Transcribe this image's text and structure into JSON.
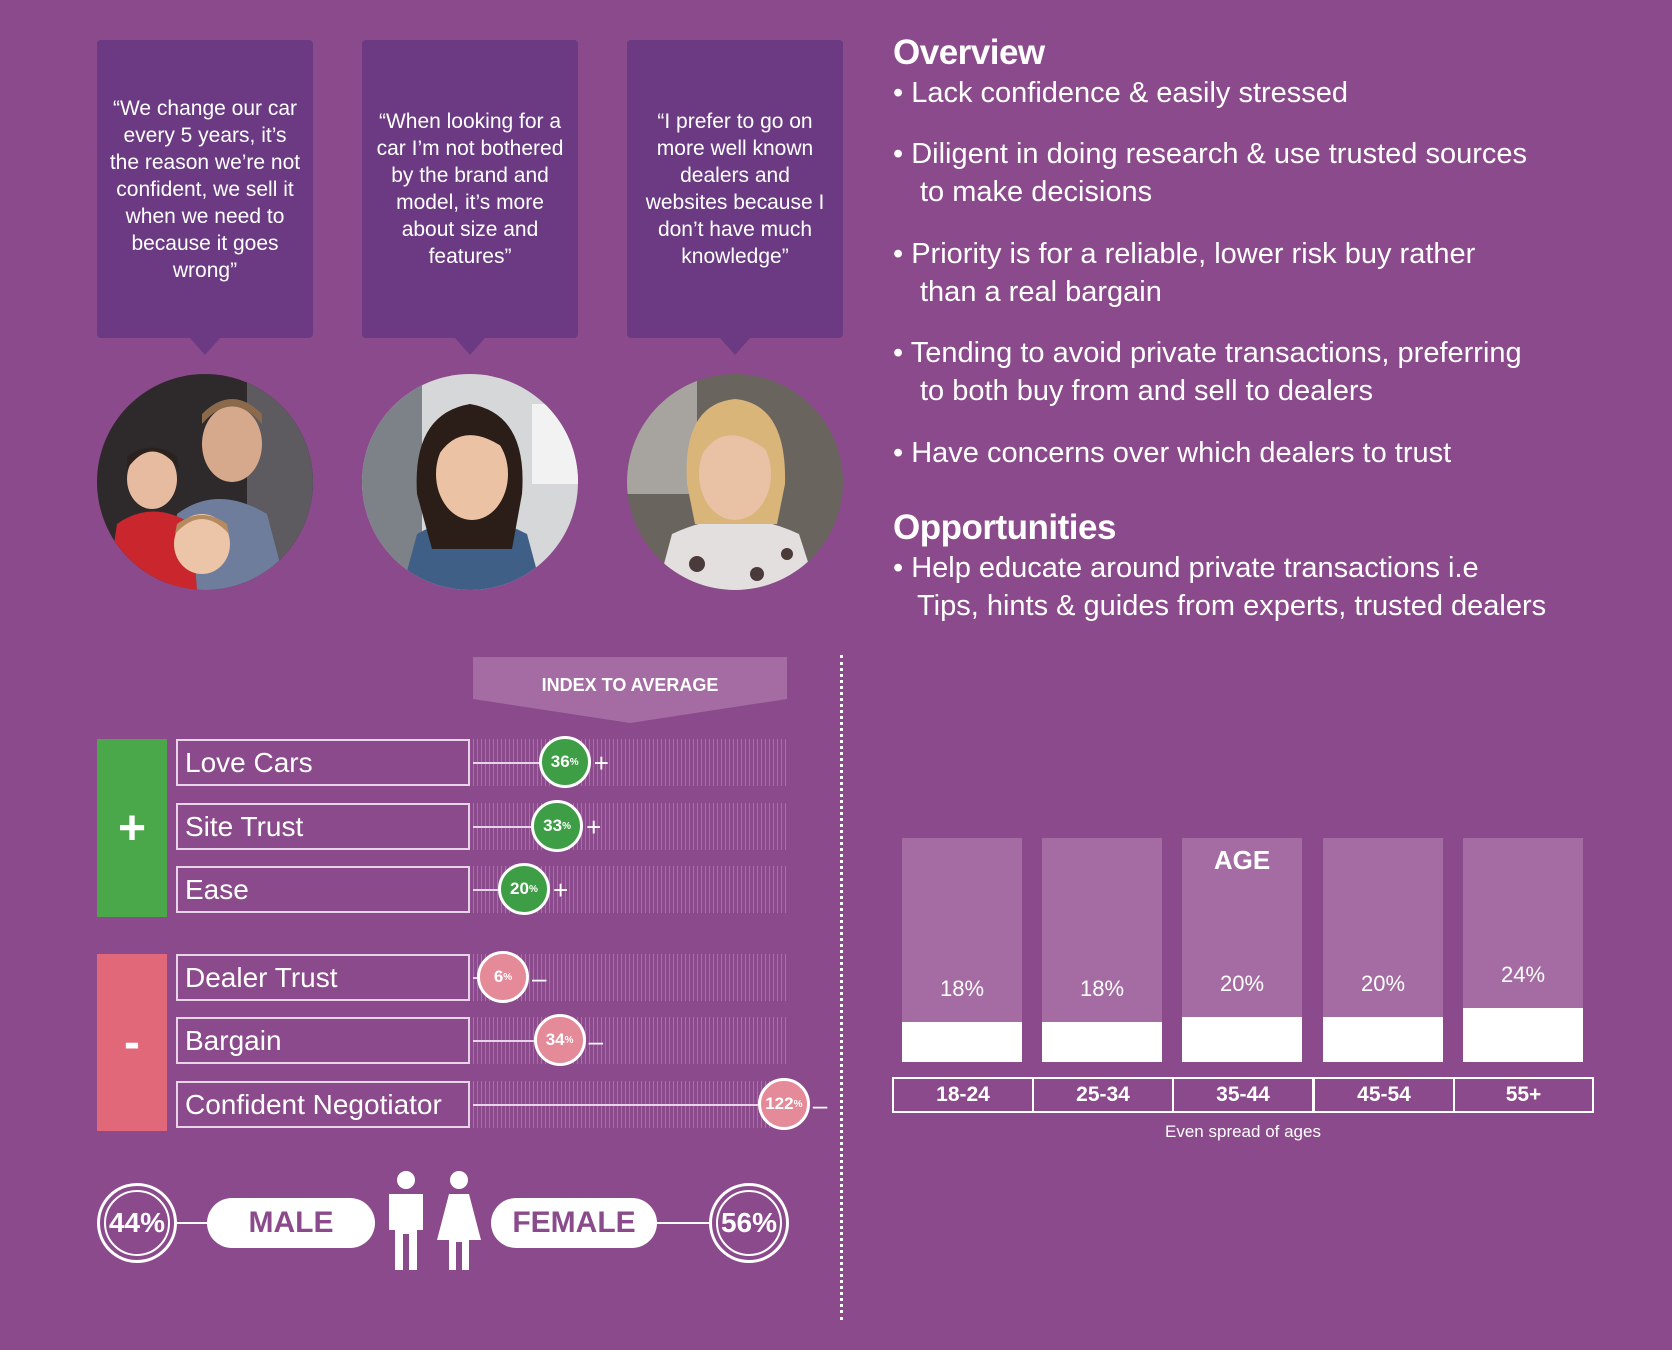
{
  "quotes": [
    "“We change our car every 5 years, it’s the reason we’re not confident, we sell it when we need to because it goes wrong”",
    "“When looking for a car I’m not bothered by the brand and model, it’s more about size and features”",
    "“I prefer to go on more well known dealers and websites because I don’t have much knowledge”"
  ],
  "overview": {
    "title": "Overview",
    "bullets": [
      [
        "Lack confidence & easily stressed",
        ""
      ],
      [
        "Diligent in doing research & use trusted sources",
        "to make decisions"
      ],
      [
        "Priority is for a reliable, lower risk buy rather",
        "than a real bargain"
      ],
      [
        "Tending to avoid private transactions, preferring",
        "to both buy from and sell to dealers"
      ],
      [
        "Have concerns over which dealers to trust",
        ""
      ]
    ]
  },
  "opportunities": {
    "title": "Opportunities",
    "line1": "Help educate around private transactions i.e",
    "line2": "Tips, hints & guides from experts, trusted dealers"
  },
  "index_chart": {
    "header": "INDEX TO AVERAGE",
    "positive_sign": "+",
    "negative_sign": "-",
    "positive": [
      {
        "label": "Love Cars",
        "value": 36,
        "text": "36",
        "sign": "+"
      },
      {
        "label": "Site Trust",
        "value": 33,
        "text": "33",
        "sign": "+"
      },
      {
        "label": "Ease",
        "value": 20,
        "text": "20",
        "sign": "+"
      }
    ],
    "negative": [
      {
        "label": "Dealer Trust",
        "value": 6,
        "text": "6",
        "sign": "–"
      },
      {
        "label": "Bargain",
        "value": 34,
        "text": "34",
        "sign": "–"
      },
      {
        "label": "Confident Negotiator",
        "value": 122,
        "text": "122",
        "sign": "–"
      }
    ],
    "pct": "%",
    "colors": {
      "positive": "#4aa84a",
      "negative": "#e06878",
      "positive_dot": "#3d9e45",
      "negative_dot": "#e58a98"
    }
  },
  "gender": {
    "male_pct": "44%",
    "male_label": "MALE",
    "female_label": "FEMALE",
    "female_pct": "56%"
  },
  "chart_data": {
    "type": "bar",
    "title": "AGE",
    "categories": [
      "18-24",
      "25-34",
      "35-44",
      "45-54",
      "55+"
    ],
    "values": [
      18,
      18,
      20,
      20,
      24
    ],
    "labels": [
      "18%",
      "18%",
      "20%",
      "20%",
      "24%"
    ],
    "caption": "Even spread of ages",
    "ylim": [
      0,
      100
    ]
  }
}
